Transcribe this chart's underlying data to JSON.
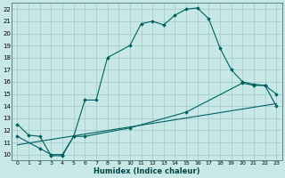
{
  "xlabel": "Humidex (Indice chaleur)",
  "background_color": "#c8e8e8",
  "grid_color": "#a0c8c8",
  "line_color": "#006060",
  "xlim": [
    -0.5,
    23.5
  ],
  "ylim": [
    9.5,
    22.5
  ],
  "xticks": [
    0,
    1,
    2,
    3,
    4,
    5,
    6,
    7,
    8,
    9,
    10,
    11,
    12,
    13,
    14,
    15,
    16,
    17,
    18,
    19,
    20,
    21,
    22,
    23
  ],
  "yticks": [
    10,
    11,
    12,
    13,
    14,
    15,
    16,
    17,
    18,
    19,
    20,
    21,
    22
  ],
  "line1_x": [
    0,
    1,
    2,
    3,
    4,
    5,
    6,
    7,
    8,
    10,
    11,
    12,
    13,
    14,
    15,
    16,
    17,
    18,
    19,
    20,
    21,
    22,
    23
  ],
  "line1_y": [
    12.5,
    11.6,
    11.5,
    9.9,
    9.9,
    11.5,
    14.5,
    14.5,
    18.0,
    19.0,
    20.8,
    21.0,
    20.7,
    21.5,
    22.0,
    22.1,
    21.2,
    18.8,
    17.0,
    16.0,
    15.8,
    15.7,
    14.0
  ],
  "line2_x": [
    0,
    2,
    3,
    4,
    5,
    6,
    10,
    15,
    20,
    21,
    22,
    23
  ],
  "line2_y": [
    11.5,
    10.5,
    10.0,
    10.0,
    11.5,
    11.5,
    12.2,
    13.5,
    15.9,
    15.7,
    15.7,
    15.0
  ],
  "line3_x": [
    0,
    23
  ],
  "line3_y": [
    10.8,
    14.2
  ]
}
